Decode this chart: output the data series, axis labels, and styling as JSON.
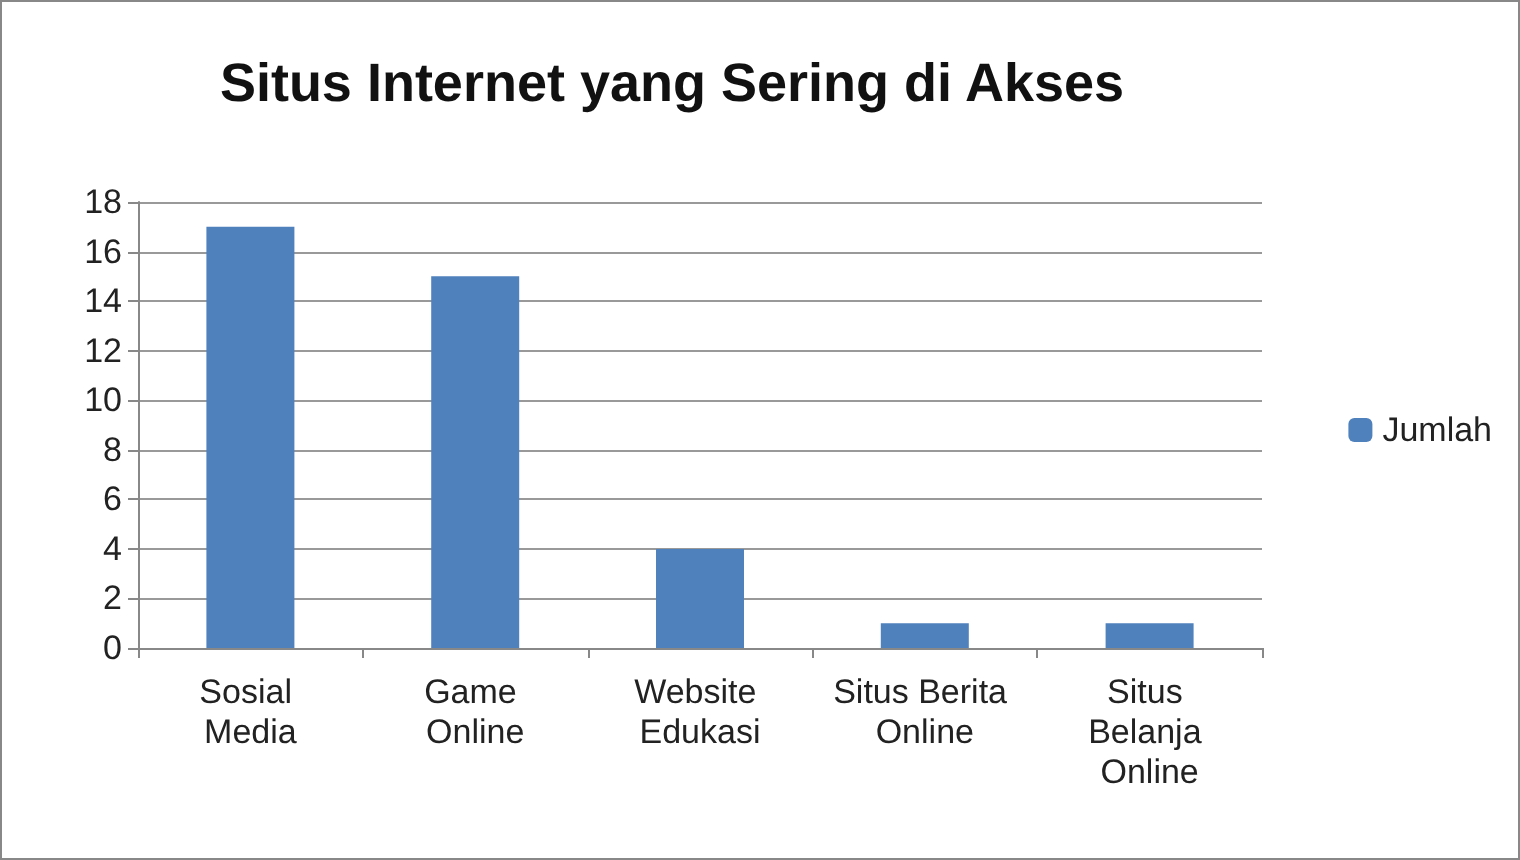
{
  "chart_data": {
    "type": "bar",
    "title": "Situs Internet yang Sering di Akses",
    "categories": [
      "Sosial Media",
      "Game Online",
      "Website Edukasi",
      "Situs Berita Online",
      "Situs Belanja Online"
    ],
    "series": [
      {
        "name": "Jumlah",
        "color": "#4f81bd",
        "values": [
          17,
          15,
          4,
          1,
          1
        ]
      }
    ],
    "ylim": [
      0,
      18
    ],
    "yticks": [
      0,
      2,
      4,
      6,
      8,
      10,
      12,
      14,
      16,
      18
    ],
    "grid": "y",
    "legend": "right"
  }
}
